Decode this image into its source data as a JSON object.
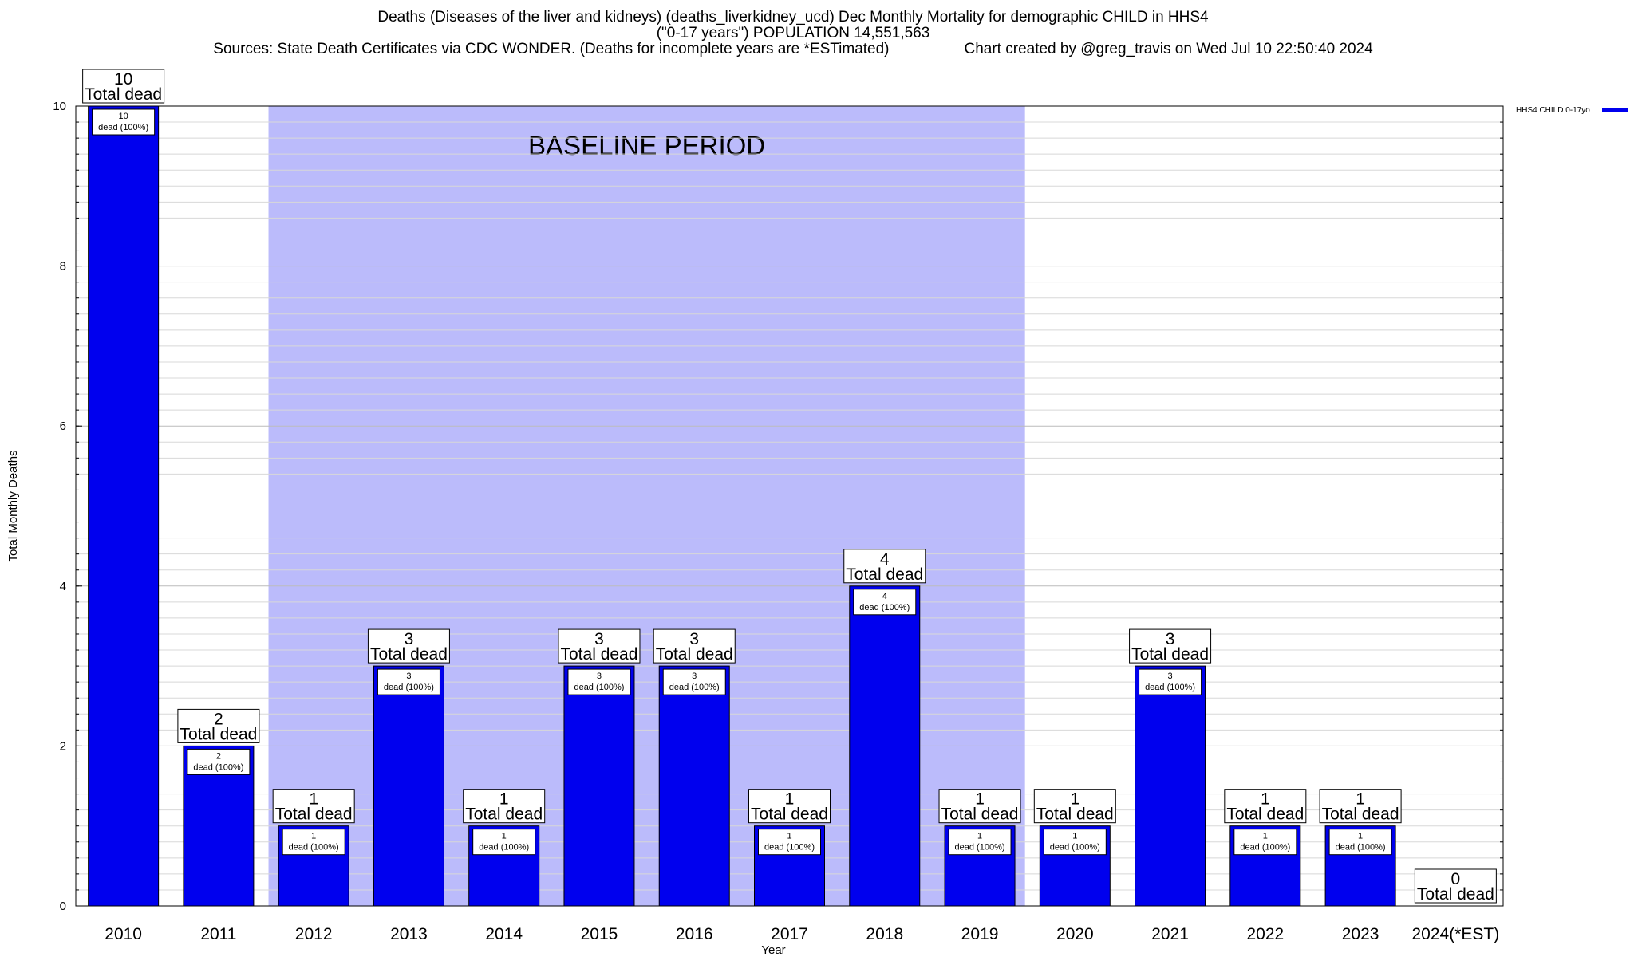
{
  "colors": {
    "bar": "#0000ee",
    "baseline_band": "#bbbbfb",
    "grid_major": "#bcbcbc",
    "grid_minor": "#d8d8d8",
    "text": "#000000",
    "label_box_bg": "#ffffff"
  },
  "header": {
    "title_line1": "Deaths (Diseases of the liver and kidneys) (deaths_liverkidney_ucd) Dec Monthly Mortality for demographic CHILD in HHS4",
    "title_line2": "(\"0-17 years\") POPULATION 14,551,563",
    "sources": "Sources: State Death Certificates via CDC WONDER. (Deaths for incomplete years are *ESTimated)",
    "credit": "Chart created by @greg_travis on Wed Jul 10 22:50:40 2024"
  },
  "chart_data": {
    "type": "bar",
    "title": "Deaths (Diseases of the liver and kidneys) (deaths_liverkidney_ucd) Dec Monthly Mortality for demographic CHILD in HHS4",
    "xlabel": "Year",
    "ylabel": "Total Monthly Deaths",
    "ylim": [
      0,
      10
    ],
    "yticks": [
      0,
      2,
      4,
      6,
      8,
      10
    ],
    "grid": true,
    "legend_position": "top-right",
    "categories": [
      "2010",
      "2011",
      "2012",
      "2013",
      "2014",
      "2015",
      "2016",
      "2017",
      "2018",
      "2019",
      "2020",
      "2021",
      "2022",
      "2023",
      "2024(*EST)"
    ],
    "series": [
      {
        "name": "HHS4 CHILD 0-17yo",
        "values": [
          10,
          2,
          1,
          3,
          1,
          3,
          3,
          1,
          4,
          1,
          1,
          3,
          1,
          1,
          0
        ]
      }
    ],
    "total_label_suffix": "Total dead",
    "inner_label_template": "dead (100%)",
    "annotation": {
      "text": "BASELINE PERIOD",
      "from_category": "2012",
      "to_category": "2019"
    }
  }
}
